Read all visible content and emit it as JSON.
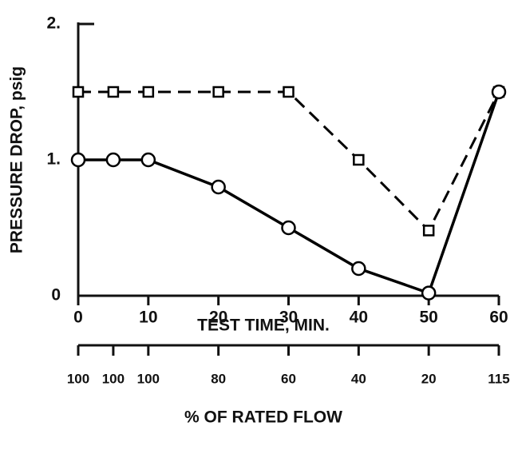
{
  "chart_data": {
    "type": "line",
    "xlabel": "TEST TIME, MIN.",
    "ylabel": "PRESSURE DROP, psig",
    "x": [
      0,
      5,
      10,
      20,
      30,
      40,
      50,
      60
    ],
    "series": [
      {
        "name": "circles",
        "color": "#000000",
        "marker": "circle",
        "dashed": false,
        "values": [
          1.0,
          1.0,
          1.0,
          0.8,
          0.5,
          0.2,
          0.02,
          1.5
        ]
      },
      {
        "name": "squares",
        "color": "#000000",
        "marker": "square",
        "dashed": true,
        "values": [
          1.5,
          1.5,
          1.5,
          1.5,
          1.5,
          1.0,
          0.48,
          1.5
        ]
      }
    ],
    "xlim": [
      0,
      60
    ],
    "xticks": [
      0,
      10,
      20,
      30,
      40,
      50,
      60
    ],
    "ylim": [
      0,
      2
    ],
    "yticks": [
      0,
      {
        "value": 1,
        "label": "1."
      },
      {
        "value": 2,
        "label": "2."
      }
    ],
    "x2label": "% OF RATED FLOW",
    "x2ticks": [
      {
        "value": 0,
        "label": "100"
      },
      {
        "value": 5,
        "label": "100"
      },
      {
        "value": 10,
        "label": "100"
      },
      {
        "value": 20,
        "label": "80"
      },
      {
        "value": 30,
        "label": "60"
      },
      {
        "value": 40,
        "label": "40"
      },
      {
        "value": 50,
        "label": "20"
      },
      {
        "value": 60,
        "label": "115"
      }
    ]
  }
}
